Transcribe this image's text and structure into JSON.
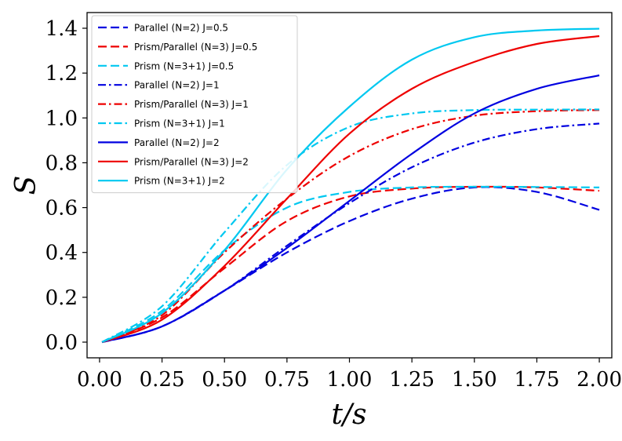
{
  "chart_data": {
    "type": "line",
    "title": "",
    "xlabel": "t/s",
    "ylabel": "S",
    "xlim": [
      -0.05,
      2.05
    ],
    "ylim": [
      -0.07,
      1.47
    ],
    "xticks": [
      0.0,
      0.25,
      0.5,
      0.75,
      1.0,
      1.25,
      1.5,
      1.75,
      2.0
    ],
    "xtick_labels": [
      "0.00",
      "0.25",
      "0.50",
      "0.75",
      "1.00",
      "1.25",
      "1.50",
      "1.75",
      "2.00"
    ],
    "yticks": [
      0.0,
      0.2,
      0.4,
      0.6,
      0.8,
      1.0,
      1.2,
      1.4
    ],
    "ytick_labels": [
      "0.0",
      "0.2",
      "0.4",
      "0.6",
      "0.8",
      "1.0",
      "1.2",
      "1.4"
    ],
    "legend_position": "top-left",
    "x": [
      0.01,
      0.25,
      0.5,
      0.75,
      1.0,
      1.25,
      1.5,
      1.75,
      2.0
    ],
    "series": [
      {
        "name": "Parallel (N=2) J=0.5",
        "color": "#0000e0",
        "dash": "dashed",
        "values": [
          0.0,
          0.07,
          0.23,
          0.4,
          0.54,
          0.64,
          0.69,
          0.67,
          0.59
        ]
      },
      {
        "name": "Prism/Parallel (N=3) J=0.5",
        "color": "#ee0000",
        "dash": "dashed",
        "values": [
          0.0,
          0.11,
          0.33,
          0.54,
          0.65,
          0.685,
          0.693,
          0.69,
          0.675
        ]
      },
      {
        "name": "Prism (N=3+1) J=0.5",
        "color": "#00c8f0",
        "dash": "dashed",
        "values": [
          0.0,
          0.14,
          0.41,
          0.6,
          0.67,
          0.69,
          0.693,
          0.692,
          0.69
        ]
      },
      {
        "name": "Parallel (N=2) J=1",
        "color": "#0000e0",
        "dash": "dashdot",
        "values": [
          0.0,
          0.07,
          0.23,
          0.43,
          0.62,
          0.78,
          0.89,
          0.95,
          0.975
        ]
      },
      {
        "name": "Prism/Parallel (N=3) J=1",
        "color": "#ee0000",
        "dash": "dashdot",
        "values": [
          0.0,
          0.12,
          0.4,
          0.64,
          0.83,
          0.95,
          1.01,
          1.03,
          1.035
        ]
      },
      {
        "name": "Prism (N=3+1) J=1",
        "color": "#00c8f0",
        "dash": "dashdot",
        "values": [
          0.0,
          0.16,
          0.49,
          0.79,
          0.96,
          1.02,
          1.035,
          1.037,
          1.038
        ]
      },
      {
        "name": "Parallel (N=2) J=2",
        "color": "#0000e0",
        "dash": "solid",
        "values": [
          0.0,
          0.07,
          0.23,
          0.42,
          0.63,
          0.84,
          1.02,
          1.13,
          1.19
        ]
      },
      {
        "name": "Prism/Parallel (N=3) J=2",
        "color": "#ee0000",
        "dash": "solid",
        "values": [
          0.0,
          0.1,
          0.34,
          0.64,
          0.93,
          1.13,
          1.25,
          1.33,
          1.365
        ]
      },
      {
        "name": "Prism (N=3+1) J=2",
        "color": "#00c8f0",
        "dash": "solid",
        "values": [
          0.0,
          0.13,
          0.41,
          0.77,
          1.05,
          1.26,
          1.36,
          1.39,
          1.398
        ]
      }
    ]
  }
}
